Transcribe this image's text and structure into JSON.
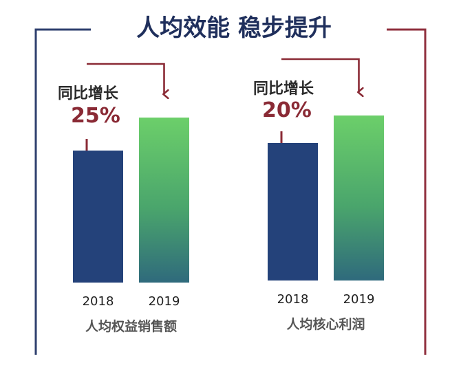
{
  "title": "人均效能 稳步提升",
  "colors": {
    "frame_left": "#2e3f6e",
    "frame_right": "#8f2f3d",
    "bar_2018": "#24427a",
    "bar_2019_top": "#6ccf6a",
    "bar_2019_bottom": "#2f6a7c",
    "arrow": "#8a2a35",
    "title": "#1f2f5c"
  },
  "chart_data": [
    {
      "type": "bar",
      "title": "",
      "xlabel": "人均权益销售额",
      "ylabel": "",
      "categories": [
        "2018",
        "2019"
      ],
      "values": [
        1.0,
        1.25
      ],
      "growth_label": "同比增长",
      "growth_value": "25%"
    },
    {
      "type": "bar",
      "title": "",
      "xlabel": "人均核心利润",
      "ylabel": "",
      "categories": [
        "2018",
        "2019"
      ],
      "values": [
        1.0,
        1.2
      ],
      "growth_label": "同比增长",
      "growth_value": "20%"
    }
  ]
}
